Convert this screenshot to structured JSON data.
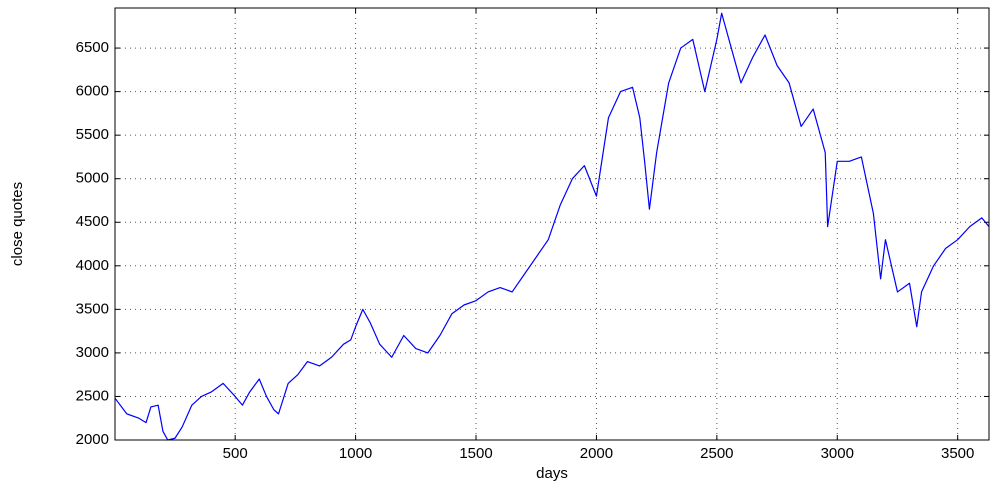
{
  "chart_data": {
    "type": "line",
    "x_label": "days",
    "y_label": "close quotes",
    "x": [
      1,
      50,
      100,
      130,
      150,
      180,
      200,
      220,
      250,
      280,
      320,
      360,
      400,
      450,
      500,
      530,
      560,
      600,
      630,
      660,
      680,
      720,
      760,
      800,
      850,
      900,
      950,
      980,
      1000,
      1030,
      1060,
      1100,
      1150,
      1200,
      1250,
      1300,
      1350,
      1400,
      1450,
      1500,
      1550,
      1600,
      1650,
      1700,
      1750,
      1800,
      1850,
      1900,
      1950,
      2000,
      2050,
      2100,
      2150,
      2180,
      2200,
      2220,
      2250,
      2300,
      2350,
      2400,
      2450,
      2500,
      2520,
      2560,
      2600,
      2650,
      2700,
      2750,
      2800,
      2850,
      2900,
      2950,
      2960,
      3000,
      3050,
      3100,
      3150,
      3180,
      3200,
      3250,
      3300,
      3330,
      3350,
      3400,
      3450,
      3500,
      3550,
      3600,
      3630
    ],
    "series": [
      {
        "name": "close",
        "color": "#0000ff",
        "values": [
          2480,
          2300,
          2250,
          2200,
          2380,
          2400,
          2100,
          2000,
          2020,
          2150,
          2400,
          2500,
          2550,
          2650,
          2500,
          2400,
          2550,
          2700,
          2500,
          2350,
          2300,
          2650,
          2750,
          2900,
          2850,
          2950,
          3100,
          3150,
          3300,
          3500,
          3350,
          3100,
          2950,
          3200,
          3050,
          3000,
          3200,
          3450,
          3550,
          3600,
          3700,
          3750,
          3700,
          3900,
          4100,
          4300,
          4700,
          5000,
          5150,
          4800,
          5700,
          6000,
          6050,
          5700,
          5200,
          4650,
          5300,
          6100,
          6500,
          6600,
          6000,
          6600,
          6900,
          6500,
          6100,
          6400,
          6650,
          6300,
          6100,
          5600,
          5800,
          5300,
          4450,
          5200,
          5200,
          5250,
          4600,
          3850,
          4300,
          3700,
          3800,
          3300,
          3700,
          4000,
          4200,
          4300,
          4450,
          4550,
          4450
        ]
      }
    ],
    "xlim": [
      1,
      3630
    ],
    "ylim": [
      2000,
      6960
    ],
    "xticks": [
      500,
      1000,
      1500,
      2000,
      2500,
      3000,
      3500
    ],
    "yticks": [
      2000,
      2500,
      3000,
      3500,
      4000,
      4500,
      5000,
      5500,
      6000,
      6500
    ],
    "grid": true
  }
}
